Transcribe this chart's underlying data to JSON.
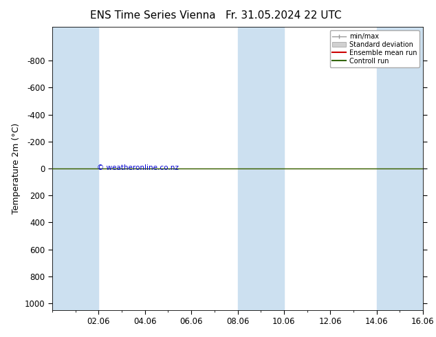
{
  "title_left": "ENS Time Series Vienna",
  "title_right": "Fr. 31.05.2024 22 UTC",
  "ylabel": "Temperature 2m (°C)",
  "ylim_top": -1050,
  "ylim_bottom": 1050,
  "yticks": [
    -800,
    -600,
    -400,
    -200,
    0,
    200,
    400,
    600,
    800,
    1000
  ],
  "xtick_labels": [
    "02.06",
    "04.06",
    "06.06",
    "08.06",
    "10.06",
    "12.06",
    "14.06",
    "16.06"
  ],
  "xmin": 0,
  "xmax": 16,
  "shaded_ranges": [
    [
      0,
      2
    ],
    [
      8,
      10
    ],
    [
      14,
      16
    ]
  ],
  "shaded_color": "#cce0f0",
  "bg_color": "#ffffff",
  "plot_bg_color": "#ffffff",
  "control_run_color": "#336600",
  "ensemble_mean_color": "#cc0000",
  "line_y": 0,
  "copyright_text": "© weatheronline.co.nz",
  "copyright_color": "#0000cc",
  "legend_items": [
    "min/max",
    "Standard deviation",
    "Ensemble mean run",
    "Controll run"
  ],
  "legend_colors": [
    "#999999",
    "#bbbbbb",
    "#cc0000",
    "#336600"
  ],
  "title_fontsize": 11,
  "axis_fontsize": 9,
  "tick_fontsize": 8.5
}
